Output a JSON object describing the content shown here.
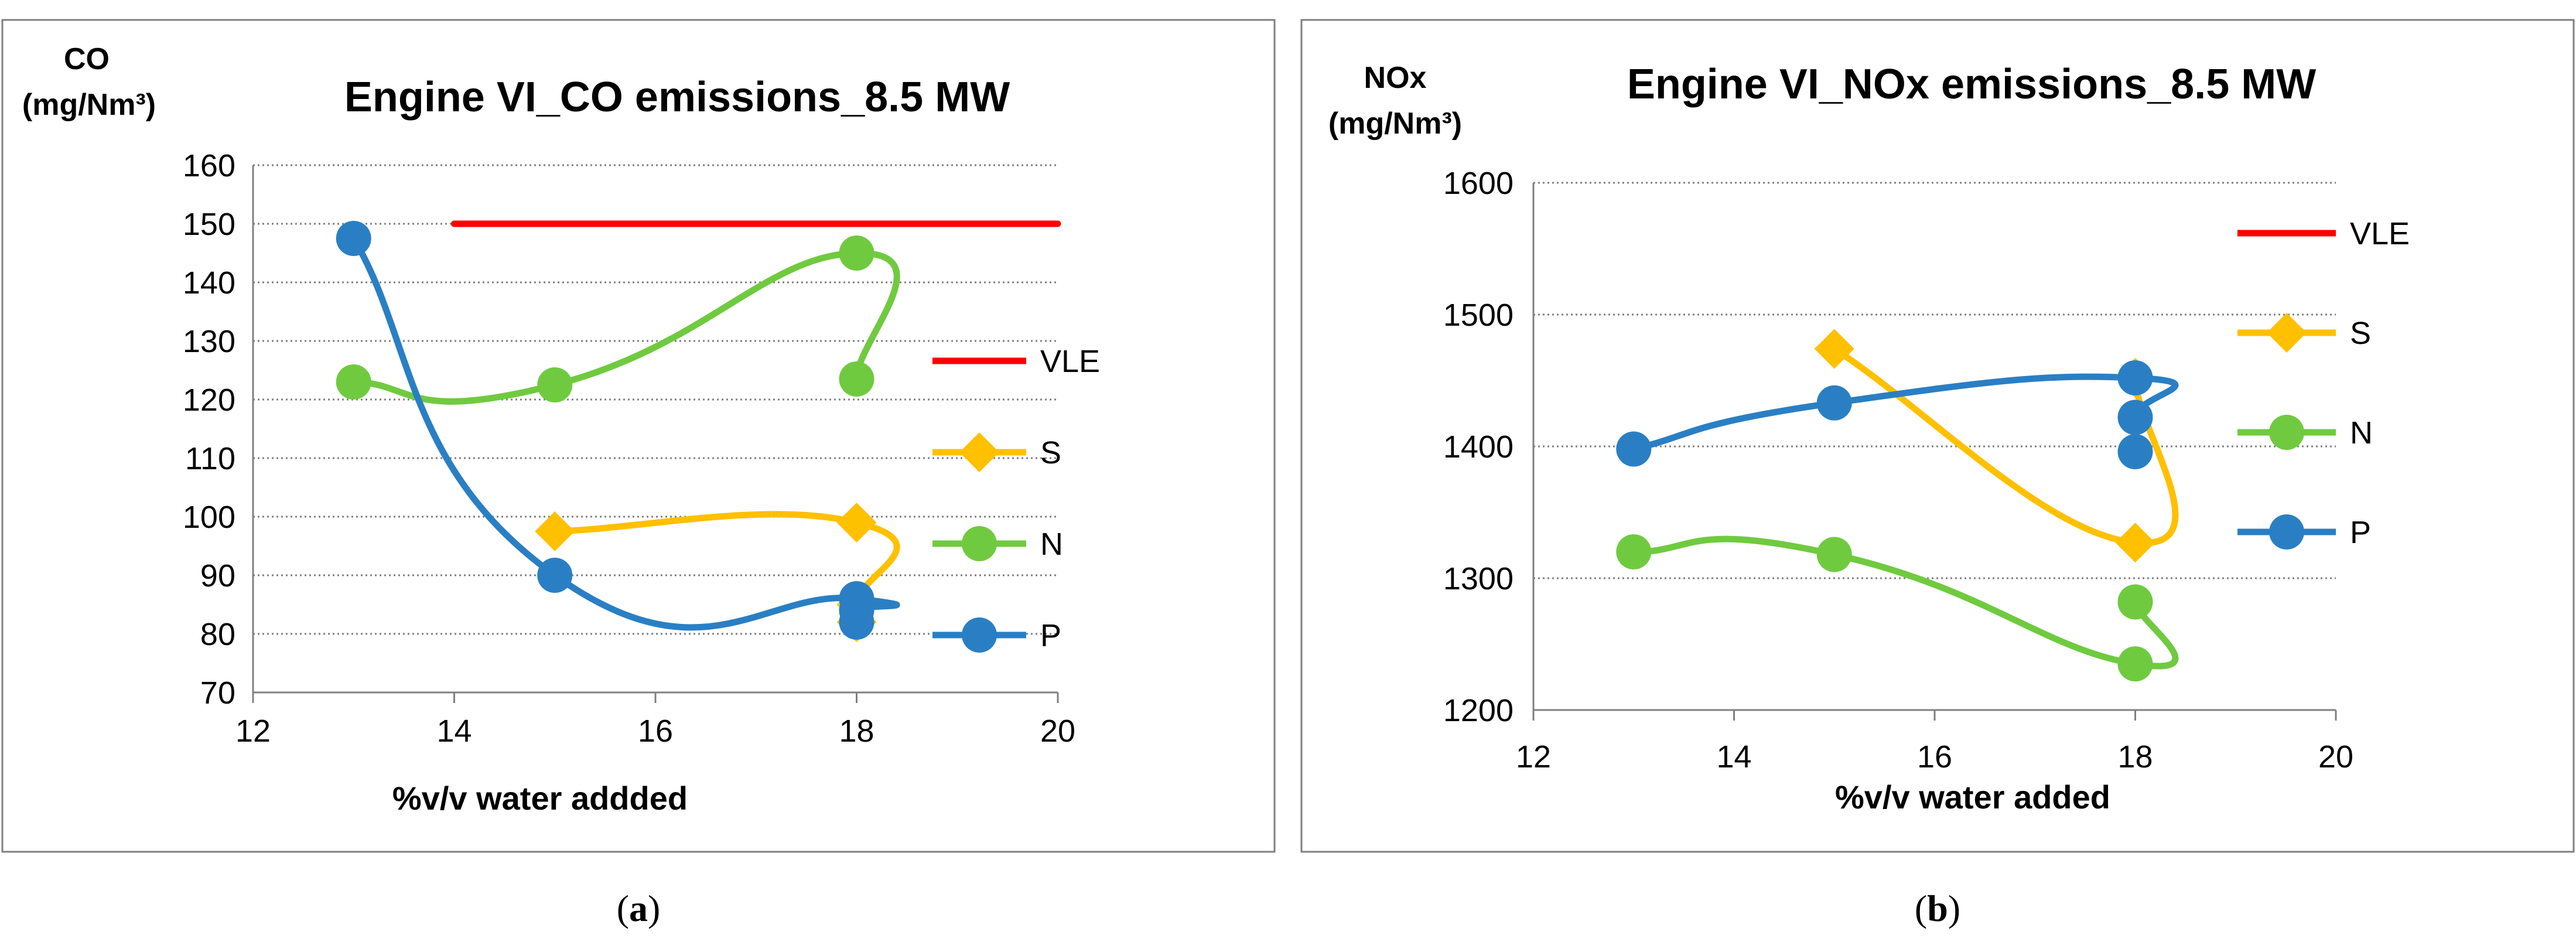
{
  "chart_data": [
    {
      "type": "line",
      "title": "Engine VI_CO emissions_8.5 MW",
      "ylabel_line1": "CO",
      "ylabel_line2": "(mg/Nm³)",
      "xlabel": "%v/v water addded",
      "xlim": [
        12,
        20
      ],
      "ylim": [
        70,
        160
      ],
      "xticks": [
        12,
        14,
        16,
        18,
        20
      ],
      "yticks": [
        70,
        80,
        90,
        100,
        110,
        120,
        130,
        140,
        150,
        160
      ],
      "grid": true,
      "legend_position": "right",
      "caption_open": "(",
      "caption_letter": "a",
      "caption_close": ")",
      "series": [
        {
          "name": "VLE",
          "color": "#ff0000",
          "marker": "none",
          "x": [
            14,
            20
          ],
          "y": [
            150,
            150
          ]
        },
        {
          "name": "S",
          "color": "#ffc000",
          "marker": "diamond",
          "x": [
            15,
            18,
            18,
            18
          ],
          "y": [
            97.5,
            99,
            85,
            82
          ]
        },
        {
          "name": "N",
          "color": "#70ca3f",
          "marker": "circle",
          "x": [
            13,
            15,
            18,
            18
          ],
          "y": [
            123,
            122.5,
            145,
            123.5
          ]
        },
        {
          "name": "P",
          "color": "#2a7fc4",
          "marker": "circle",
          "x": [
            13,
            15,
            18,
            18,
            18
          ],
          "y": [
            147.5,
            90,
            86,
            84,
            82
          ]
        }
      ]
    },
    {
      "type": "line",
      "title": "Engine VI_NOx emissions_8.5 MW",
      "ylabel_line1": "NOx",
      "ylabel_line2": "(mg/Nm³)",
      "xlabel": "%v/v water added",
      "xlim": [
        12,
        20
      ],
      "ylim": [
        1200,
        1600
      ],
      "xticks": [
        12,
        14,
        16,
        18,
        20
      ],
      "yticks": [
        1200,
        1300,
        1400,
        1500,
        1600
      ],
      "grid": true,
      "legend_position": "right",
      "caption_open": "(",
      "caption_letter": "b",
      "caption_close": ")",
      "series": [
        {
          "name": "VLE",
          "color": "#ff0000",
          "marker": "none",
          "x": [],
          "y": []
        },
        {
          "name": "S",
          "color": "#ffc000",
          "marker": "diamond",
          "x": [
            15,
            18,
            18
          ],
          "y": [
            1474,
            1327,
            1452
          ]
        },
        {
          "name": "N",
          "color": "#70ca3f",
          "marker": "circle",
          "x": [
            13,
            15,
            18,
            18
          ],
          "y": [
            1320,
            1318,
            1235,
            1282
          ]
        },
        {
          "name": "P",
          "color": "#2a7fc4",
          "marker": "circle",
          "x": [
            13,
            15,
            18,
            18,
            18
          ],
          "y": [
            1398,
            1433,
            1452,
            1422,
            1396
          ]
        }
      ]
    }
  ]
}
